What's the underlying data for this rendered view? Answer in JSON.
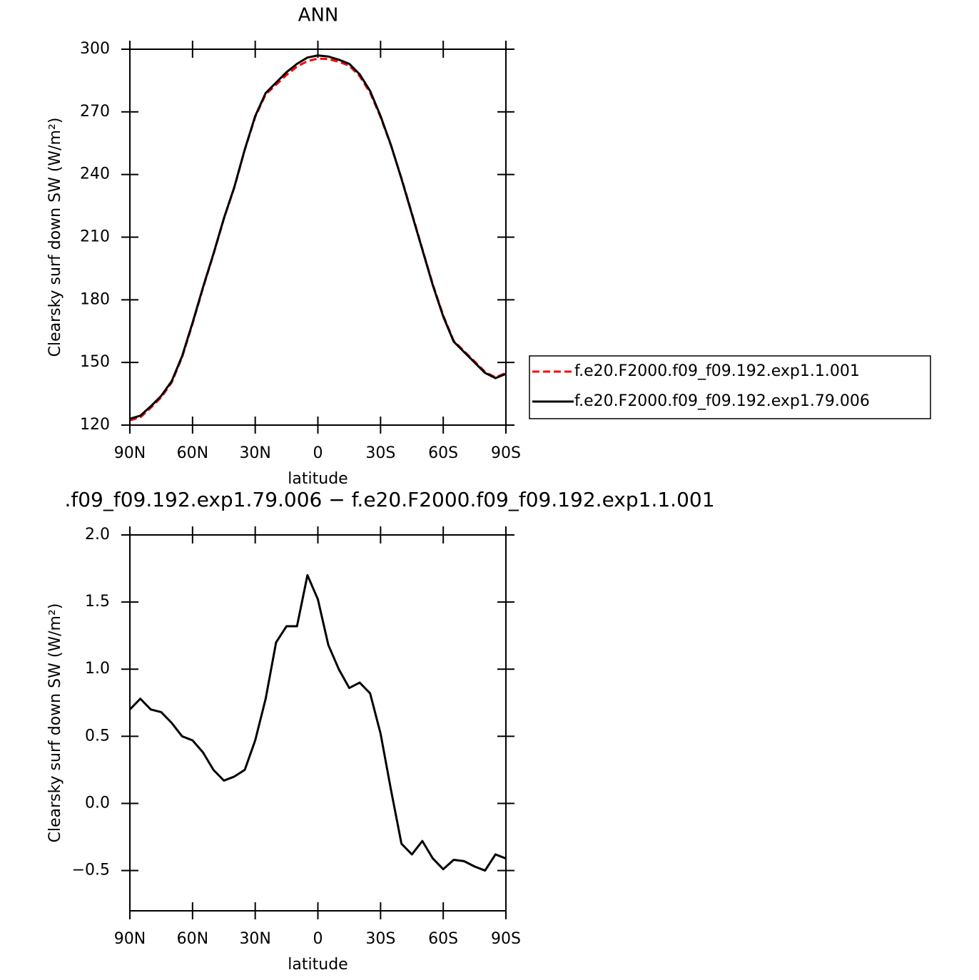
{
  "chart_data": [
    {
      "type": "line",
      "title": "ANN",
      "ylabel": "Clearsky surf down SW (W/m²)",
      "xlabel": "latitude",
      "x": [
        90,
        85,
        80,
        75,
        70,
        65,
        60,
        55,
        50,
        45,
        40,
        35,
        30,
        25,
        20,
        15,
        10,
        5,
        0,
        -5,
        -10,
        -15,
        -20,
        -25,
        -30,
        -35,
        -40,
        -45,
        -50,
        -55,
        -60,
        -65,
        -70,
        -75,
        -80,
        -85,
        -90
      ],
      "series": [
        {
          "name": "f.e20.F2000.f09_f09.192.exp1.1.001",
          "color": "#ff0000",
          "dash": "dashed",
          "values": [
            122.3,
            123.7,
            128.3,
            133.3,
            140.4,
            152.5,
            168.5,
            185.6,
            201.7,
            218.8,
            233.8,
            251.8,
            267.6,
            278.4,
            283,
            287.7,
            291.7,
            294.3,
            295.5,
            295.3,
            294,
            292.1,
            287.1,
            279.2,
            267.5,
            253.9,
            238.3,
            221.4,
            204.3,
            187.4,
            172.5,
            160.4,
            155.4,
            150.5,
            145.5,
            142.9,
            144.9
          ]
        },
        {
          "name": "f.e20.F2000.f09_f09.192.exp1.79.006",
          "color": "#000000",
          "dash": "solid",
          "values": [
            123,
            124.5,
            129,
            134,
            141,
            153,
            169,
            186,
            202,
            219,
            234,
            252,
            268,
            279,
            284,
            289,
            293,
            296,
            297,
            296.5,
            295,
            293,
            288,
            280,
            268,
            254,
            238,
            221,
            204,
            187,
            172,
            160,
            155,
            150,
            145,
            142.5,
            144.5
          ]
        }
      ],
      "xlim": [
        90,
        -90
      ],
      "xticks": [
        {
          "value": 90,
          "label": "90N"
        },
        {
          "value": 60,
          "label": "60N"
        },
        {
          "value": 30,
          "label": "30N"
        },
        0,
        {
          "value": -30,
          "label": "30S"
        },
        {
          "value": -60,
          "label": "60S"
        },
        {
          "value": -90,
          "label": "90S"
        }
      ],
      "ylim": [
        120,
        300
      ],
      "yticks": [
        120,
        150,
        180,
        210,
        240,
        270,
        300
      ],
      "legend": "right"
    },
    {
      "type": "line",
      "title": ".f09_f09.192.exp1.79.006 − f.e20.F2000.f09_f09.192.exp1.1.001",
      "ylabel": "Clearsky surf down SW (W/m²)",
      "xlabel": "latitude",
      "x": [
        90,
        85,
        80,
        75,
        70,
        65,
        60,
        55,
        50,
        45,
        40,
        35,
        30,
        25,
        20,
        15,
        10,
        5,
        0,
        -5,
        -10,
        -15,
        -20,
        -25,
        -30,
        -35,
        -40,
        -45,
        -50,
        -55,
        -60,
        -65,
        -70,
        -75,
        -80,
        -85,
        -90
      ],
      "series": [
        {
          "color": "#000000",
          "values": [
            0.7,
            0.78,
            0.7,
            0.68,
            0.6,
            0.5,
            0.47,
            0.38,
            0.25,
            0.17,
            0.2,
            0.25,
            0.47,
            0.78,
            1.2,
            1.32,
            1.32,
            1.7,
            1.52,
            1.18,
            1.0,
            0.86,
            0.9,
            0.82,
            0.52,
            0.1,
            -0.3,
            -0.38,
            -0.28,
            -0.41,
            -0.49,
            -0.42,
            -0.43,
            -0.47,
            -0.5,
            -0.38,
            -0.41
          ]
        }
      ],
      "xlim": [
        90,
        -90
      ],
      "xticks": [
        {
          "value": 90,
          "label": "90N"
        },
        {
          "value": 60,
          "label": "60N"
        },
        {
          "value": 30,
          "label": "30N"
        },
        0,
        {
          "value": -30,
          "label": "30S"
        },
        {
          "value": -60,
          "label": "60S"
        },
        {
          "value": -90,
          "label": "90S"
        }
      ],
      "ylim": [
        -0.8,
        2.0
      ],
      "yticks": [
        {
          "value": -0.5,
          "label": "−0.5"
        },
        {
          "value": 0,
          "label": "0.0"
        },
        {
          "value": 0.5,
          "label": "0.5"
        },
        {
          "value": 1,
          "label": "1.0"
        },
        {
          "value": 1.5,
          "label": "1.5"
        },
        {
          "value": 2,
          "label": "2.0"
        }
      ]
    }
  ]
}
